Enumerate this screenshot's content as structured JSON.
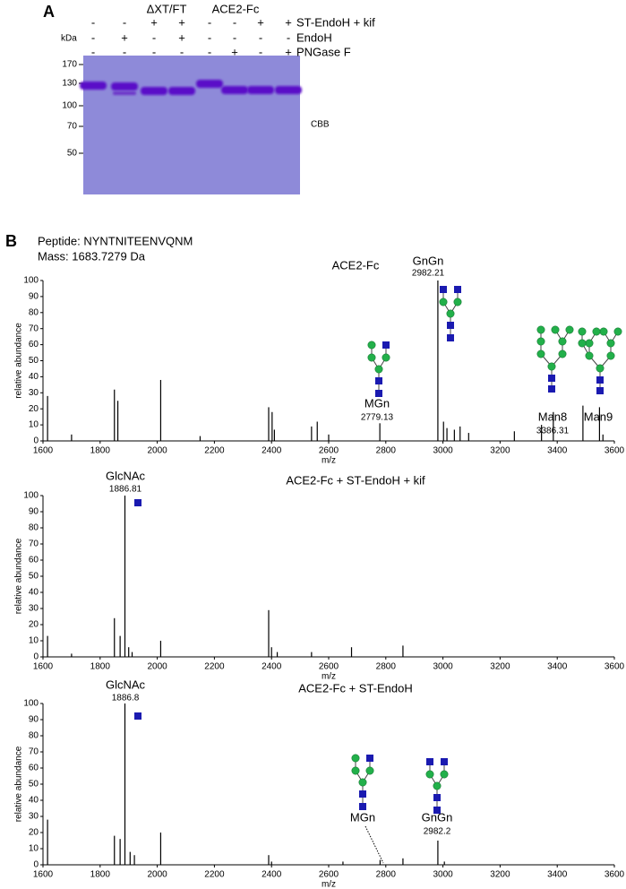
{
  "panel_a": {
    "letter": "A",
    "groups": [
      "ΔXT/FT",
      "ACE2-Fc"
    ],
    "unit": "kDa",
    "treatments": [
      "ST-EndoH + kif",
      "EndoH",
      "PNGase F"
    ],
    "signs": [
      [
        "-",
        "-",
        "+",
        "+",
        "-",
        "-",
        "+",
        "+"
      ],
      [
        "-",
        "+",
        "-",
        "+",
        "-",
        "-",
        "-",
        "-"
      ],
      [
        "-",
        "-",
        "-",
        "-",
        "-",
        "+",
        "-",
        "+"
      ]
    ],
    "markers": [
      170,
      130,
      100,
      70,
      50
    ],
    "stain": "CBB"
  },
  "panel_b": {
    "letter": "B",
    "peptide": "Peptide: NYNTNITEENVQNM",
    "mass": "Mass: 1683.7279 Da"
  },
  "chart_data": [
    {
      "type": "bar",
      "title": "ACE2-Fc",
      "xlabel": "m/z",
      "ylabel": "relative abundance",
      "color": "#000000",
      "x": [
        1616,
        1700,
        1850,
        1862,
        2012,
        2150,
        2390,
        2402,
        2410,
        2540,
        2560,
        2600,
        2779.13,
        2982.21,
        3002,
        3014,
        3040,
        3060,
        3090,
        3250,
        3345,
        3386.31,
        3490,
        3548,
        3560
      ],
      "values": [
        28,
        4,
        32,
        25,
        38,
        3,
        21,
        18,
        7,
        9,
        12,
        4,
        11,
        100,
        12,
        8,
        7,
        9,
        5,
        6,
        10,
        18,
        22,
        21,
        4
      ],
      "xlim": [
        1600,
        3600
      ],
      "ylim": [
        0,
        100
      ],
      "xticks": [
        1600,
        1800,
        2000,
        2200,
        2400,
        2600,
        2800,
        3000,
        3200,
        3400,
        3600
      ],
      "yticks": [
        0,
        10,
        20,
        30,
        40,
        50,
        60,
        70,
        80,
        90,
        100
      ],
      "annotations": [
        {
          "label": "GnGn",
          "value": 2982.21
        },
        {
          "label": "MGn",
          "value": 2779.13
        },
        {
          "label": "Man8",
          "value": 3386.31
        },
        {
          "label": "Man9"
        }
      ]
    },
    {
      "type": "bar",
      "title": "ACE2-Fc + ST-EndoH + kif",
      "xlabel": "m/z",
      "ylabel": "relative abundance",
      "color": "#000000",
      "x": [
        1616,
        1700,
        1850,
        1870,
        1886.81,
        1900,
        1912,
        2012,
        2390,
        2400,
        2420,
        2540,
        2680,
        2860
      ],
      "values": [
        13,
        2,
        24,
        13,
        100,
        6,
        3,
        10,
        29,
        6,
        3,
        3,
        6,
        7
      ],
      "xlim": [
        1600,
        3600
      ],
      "ylim": [
        0,
        100
      ],
      "xticks": [
        1600,
        1800,
        2000,
        2200,
        2400,
        2600,
        2800,
        3000,
        3200,
        3400,
        3600
      ],
      "yticks": [
        0,
        10,
        20,
        30,
        40,
        50,
        60,
        70,
        80,
        90,
        100
      ],
      "annotations": [
        {
          "label": "GlcNAc",
          "value": 1886.81
        }
      ]
    },
    {
      "type": "bar",
      "title": "ACE2-Fc + ST-EndoH",
      "xlabel": "m/z",
      "ylabel": "relative abundance",
      "color": "#000000",
      "x": [
        1616,
        1850,
        1870,
        1886.8,
        1905,
        1920,
        2012,
        2390,
        2400,
        2650,
        2780,
        2860,
        2982.2,
        3005
      ],
      "values": [
        28,
        18,
        16,
        100,
        8,
        6,
        20,
        6,
        2,
        2,
        3,
        4,
        15,
        2
      ],
      "xlim": [
        1600,
        3600
      ],
      "ylim": [
        0,
        100
      ],
      "xticks": [
        1600,
        1800,
        2000,
        2200,
        2400,
        2600,
        2800,
        3000,
        3200,
        3400,
        3600
      ],
      "yticks": [
        0,
        10,
        20,
        30,
        40,
        50,
        60,
        70,
        80,
        90,
        100
      ],
      "annotations": [
        {
          "label": "GlcNAc",
          "value": 1886.8
        },
        {
          "label": "MGn"
        },
        {
          "label": "GnGn",
          "value": 2982.2
        }
      ]
    }
  ]
}
